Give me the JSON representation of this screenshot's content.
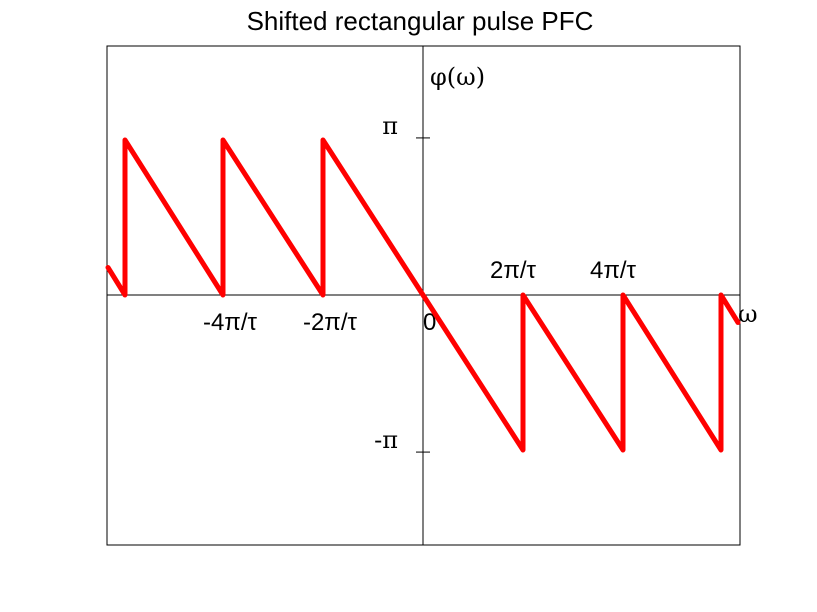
{
  "chart_data": {
    "type": "line",
    "title": "Shifted rectangular pulse PFC",
    "ylabel": "φ(ω)",
    "xlabel": "ω",
    "xlim": [
      -6.3,
      6.3
    ],
    "ylim": [
      -3.14,
      3.14
    ],
    "x_ticks": [
      {
        "value": -4,
        "label": "-4π/τ"
      },
      {
        "value": -2,
        "label": "-2π/τ"
      },
      {
        "value": 0,
        "label": "0"
      },
      {
        "value": 2,
        "label": "2π/τ"
      },
      {
        "value": 4,
        "label": "4π/τ"
      }
    ],
    "y_ticks": [
      {
        "value": 3.14159,
        "label": "π"
      },
      {
        "value": -3.14159,
        "label": "-π"
      }
    ],
    "series": [
      {
        "color": "#ff0000",
        "x": [
          -6.3,
          -5.96,
          -5.96,
          -4,
          -4,
          -2,
          -2,
          0,
          2,
          2,
          4,
          4,
          5.96,
          5.96,
          6.3
        ],
        "y": [
          0.55,
          0,
          3.1,
          0,
          3.1,
          0,
          3.1,
          0,
          -3.1,
          0,
          -3.1,
          0,
          -3.1,
          0,
          -0.55
        ]
      }
    ],
    "grid": false,
    "legend": "none"
  }
}
